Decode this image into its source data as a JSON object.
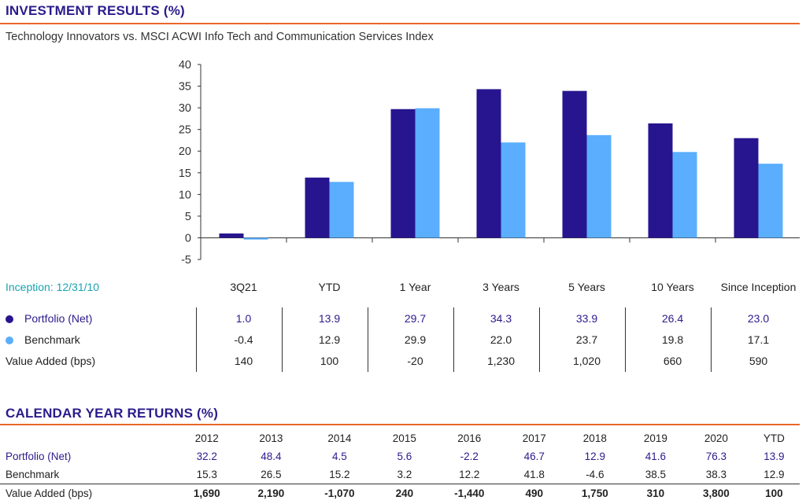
{
  "header": {
    "title": "INVESTMENT RESULTS (%)",
    "subtitle": "Technology Innovators vs. MSCI ACWI Info Tech and Communication Services Index"
  },
  "colors": {
    "title": "#2a1b8c",
    "rule": "#e8672a",
    "portfolio": "#27158f",
    "benchmark": "#5aaefd",
    "inception": "#1aa3b0"
  },
  "chart_data": {
    "type": "bar",
    "title": "Technology Innovators vs. MSCI ACWI Info Tech and Communication Services Index",
    "categories": [
      "3Q21",
      "YTD",
      "1 Year",
      "3 Years",
      "5 Years",
      "10 Years",
      "Since Inception"
    ],
    "series": [
      {
        "name": "Portfolio (Net)",
        "values": [
          1.0,
          13.9,
          29.7,
          34.3,
          33.9,
          26.4,
          23.0
        ]
      },
      {
        "name": "Benchmark",
        "values": [
          -0.4,
          12.9,
          29.9,
          22.0,
          23.7,
          19.8,
          17.1
        ]
      }
    ],
    "yticks": [
      "40",
      "35",
      "30",
      "25",
      "20",
      "15",
      "10",
      "5",
      "0",
      "-5"
    ],
    "ylim": [
      -5,
      40
    ],
    "xlabel": "",
    "ylabel": ""
  },
  "table": {
    "inception": "Inception: 12/31/10",
    "rows": {
      "portfolio": {
        "label": "Portfolio (Net)",
        "values": [
          "1.0",
          "13.9",
          "29.7",
          "34.3",
          "33.9",
          "26.4",
          "23.0"
        ]
      },
      "benchmark": {
        "label": "Benchmark",
        "values": [
          "-0.4",
          "12.9",
          "29.9",
          "22.0",
          "23.7",
          "19.8",
          "17.1"
        ]
      },
      "value_added": {
        "label": "Value Added (bps)",
        "values": [
          "140",
          "100",
          "-20",
          "1,230",
          "1,020",
          "660",
          "590"
        ]
      }
    }
  },
  "calendar": {
    "title": "CALENDAR YEAR RETURNS (%)",
    "years": [
      "2012",
      "2013",
      "2014",
      "2015",
      "2016",
      "2017",
      "2018",
      "2019",
      "2020",
      "YTD"
    ],
    "portfolio": {
      "label": "Portfolio (Net)",
      "values": [
        "32.2",
        "48.4",
        "4.5",
        "5.6",
        "-2.2",
        "46.7",
        "12.9",
        "41.6",
        "76.3",
        "13.9"
      ]
    },
    "benchmark": {
      "label": "Benchmark",
      "values": [
        "15.3",
        "26.5",
        "15.2",
        "3.2",
        "12.2",
        "41.8",
        "-4.6",
        "38.5",
        "38.3",
        "12.9"
      ]
    },
    "value_added": {
      "label": "Value Added (bps)",
      "values": [
        "1,690",
        "2,190",
        "-1,070",
        "240",
        "-1,440",
        "490",
        "1,750",
        "310",
        "3,800",
        "100"
      ]
    }
  }
}
